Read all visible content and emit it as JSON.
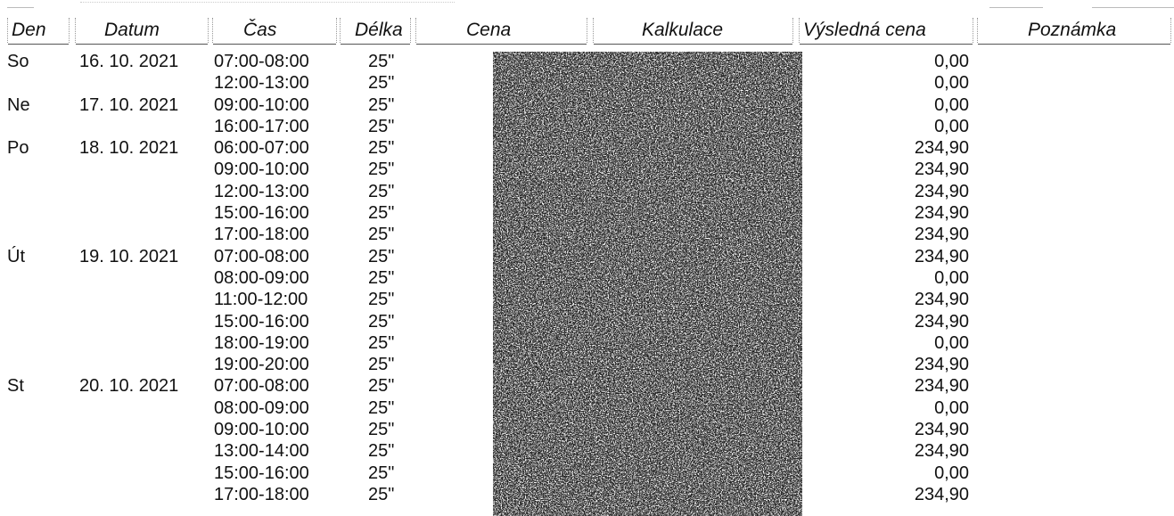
{
  "headers": {
    "den": "Den",
    "datum": "Datum",
    "cas": "Čas",
    "delka": "Délka",
    "cena": "Cena",
    "kalkulace": "Kalkulace",
    "vysledna_cena": "Výsledná cena",
    "poznamka": "Poznámka"
  },
  "rows": [
    {
      "den": "So",
      "datum": "16. 10. 2021",
      "cas": "07:00-08:00",
      "delka": "25\"",
      "cena": "0,00"
    },
    {
      "den": "",
      "datum": "",
      "cas": "12:00-13:00",
      "delka": "25\"",
      "cena": "0,00"
    },
    {
      "den": "Ne",
      "datum": "17. 10. 2021",
      "cas": "09:00-10:00",
      "delka": "25\"",
      "cena": "0,00"
    },
    {
      "den": "",
      "datum": "",
      "cas": "16:00-17:00",
      "delka": "25\"",
      "cena": "0,00"
    },
    {
      "den": "Po",
      "datum": "18. 10. 2021",
      "cas": "06:00-07:00",
      "delka": "25\"",
      "cena": "234,90"
    },
    {
      "den": "",
      "datum": "",
      "cas": "09:00-10:00",
      "delka": "25\"",
      "cena": "234,90"
    },
    {
      "den": "",
      "datum": "",
      "cas": "12:00-13:00",
      "delka": "25\"",
      "cena": "234,90"
    },
    {
      "den": "",
      "datum": "",
      "cas": "15:00-16:00",
      "delka": "25\"",
      "cena": "234,90"
    },
    {
      "den": "",
      "datum": "",
      "cas": "17:00-18:00",
      "delka": "25\"",
      "cena": "234,90"
    },
    {
      "den": "Út",
      "datum": "19. 10. 2021",
      "cas": "07:00-08:00",
      "delka": "25\"",
      "cena": "234,90"
    },
    {
      "den": "",
      "datum": "",
      "cas": "08:00-09:00",
      "delka": "25\"",
      "cena": "0,00"
    },
    {
      "den": "",
      "datum": "",
      "cas": "11:00-12:00",
      "delka": "25\"",
      "cena": "234,90"
    },
    {
      "den": "",
      "datum": "",
      "cas": "15:00-16:00",
      "delka": "25\"",
      "cena": "234,90"
    },
    {
      "den": "",
      "datum": "",
      "cas": "18:00-19:00",
      "delka": "25\"",
      "cena": "0,00"
    },
    {
      "den": "",
      "datum": "",
      "cas": "19:00-20:00",
      "delka": "25\"",
      "cena": "234,90"
    },
    {
      "den": "St",
      "datum": "20. 10. 2021",
      "cas": "07:00-08:00",
      "delka": "25\"",
      "cena": "234,90"
    },
    {
      "den": "",
      "datum": "",
      "cas": "08:00-09:00",
      "delka": "25\"",
      "cena": "0,00"
    },
    {
      "den": "",
      "datum": "",
      "cas": "09:00-10:00",
      "delka": "25\"",
      "cena": "234,90"
    },
    {
      "den": "",
      "datum": "",
      "cas": "13:00-14:00",
      "delka": "25\"",
      "cena": "234,90"
    },
    {
      "den": "",
      "datum": "",
      "cas": "15:00-16:00",
      "delka": "25\"",
      "cena": "0,00"
    },
    {
      "den": "",
      "datum": "",
      "cas": "17:00-18:00",
      "delka": "25\"",
      "cena": "234,90"
    }
  ]
}
